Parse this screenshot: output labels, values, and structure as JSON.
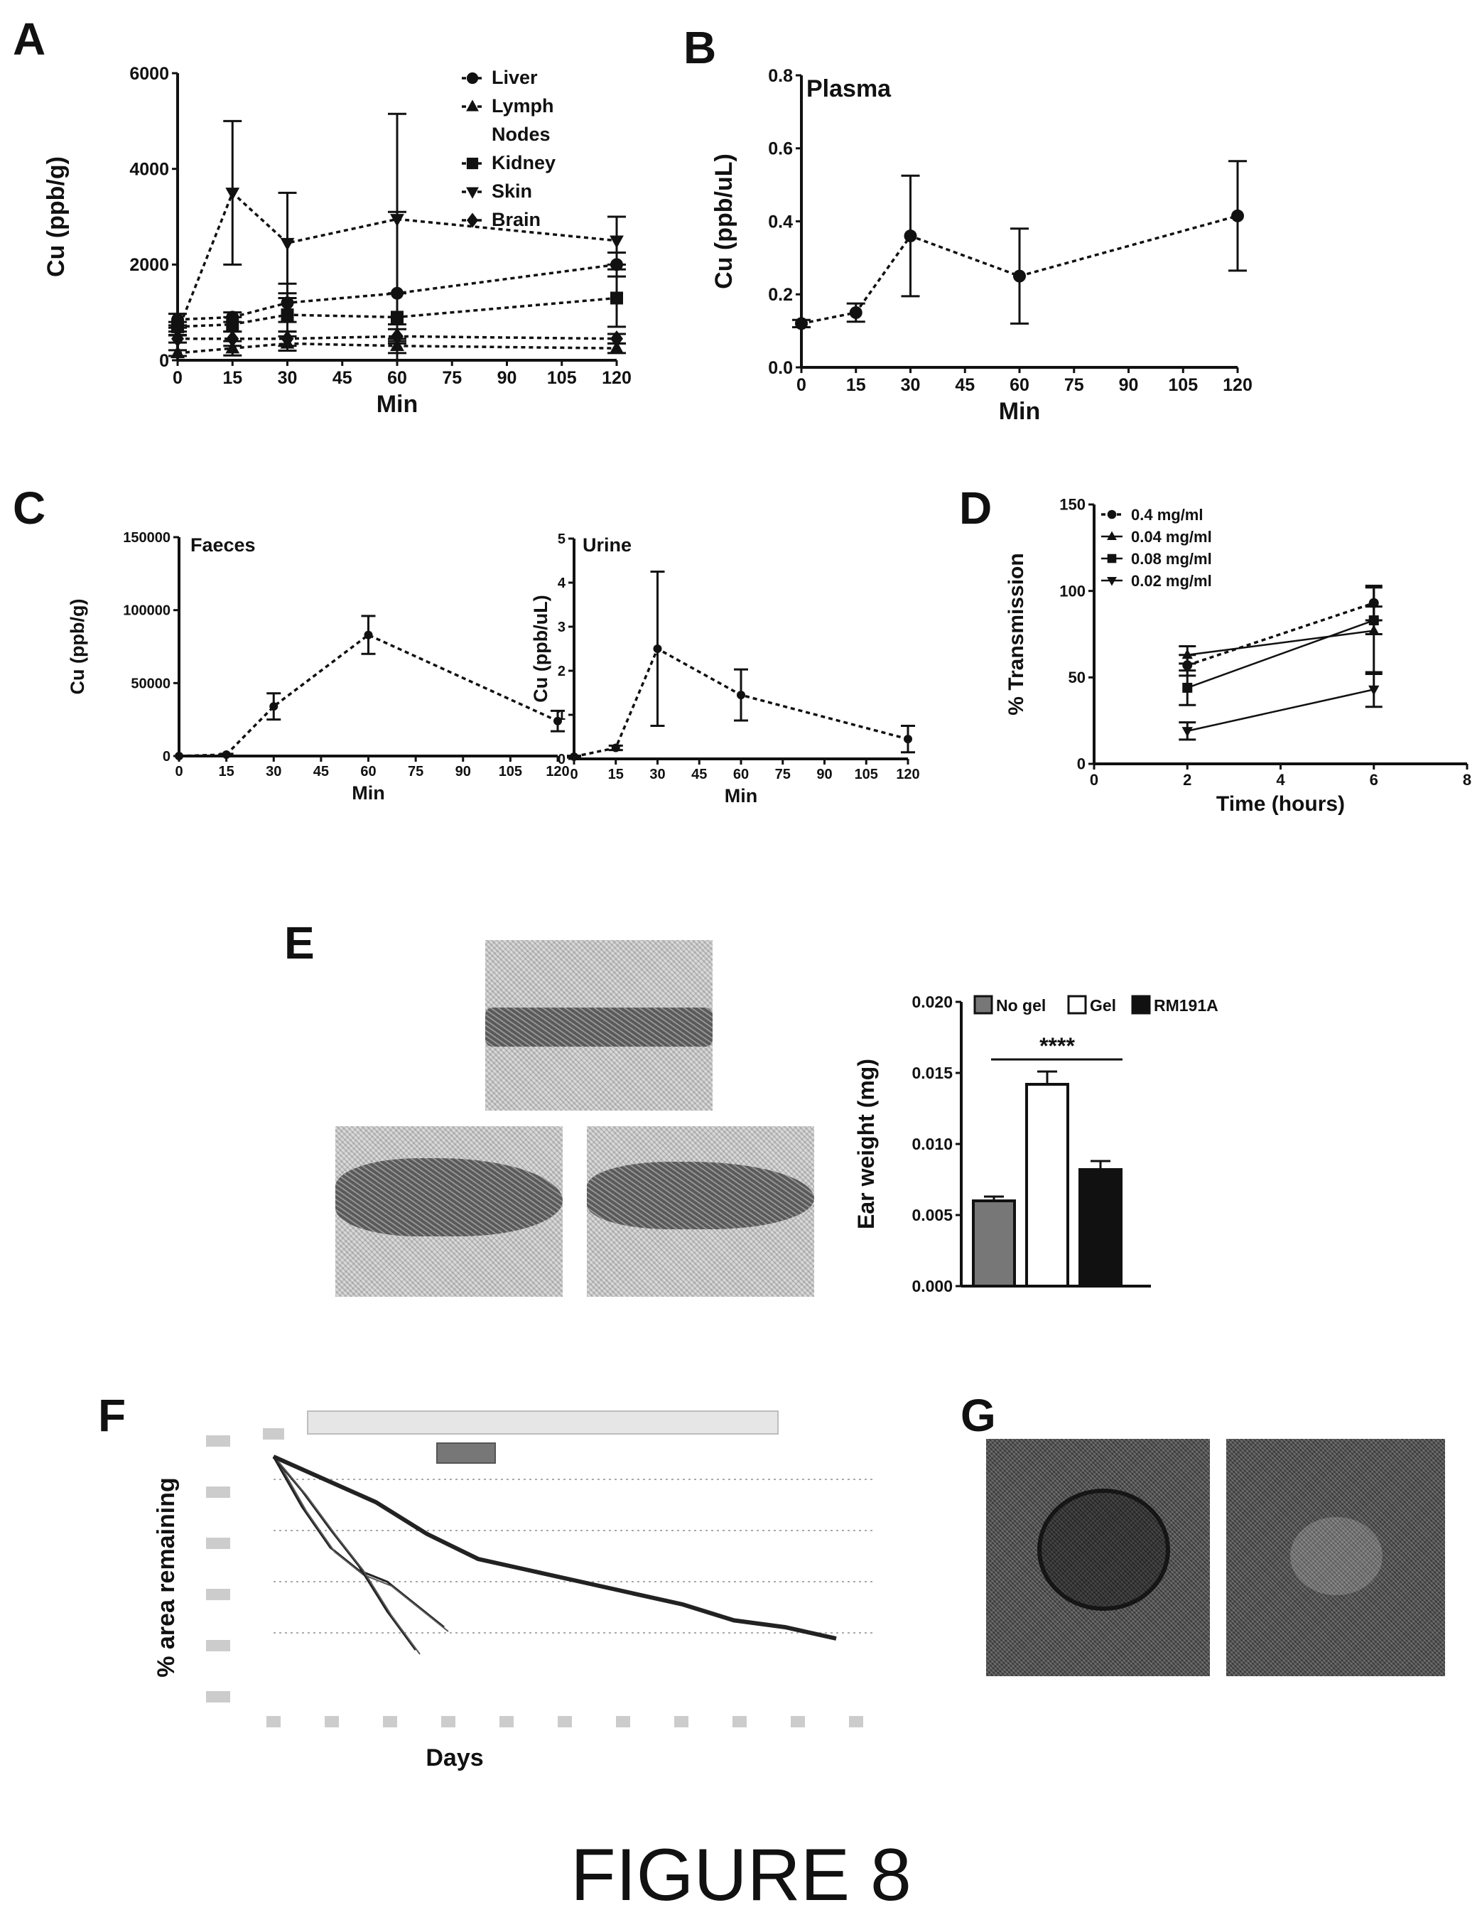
{
  "panels": {
    "A": "A",
    "B": "B",
    "C": "C",
    "D": "D",
    "E": "E",
    "F": "F",
    "G": "G"
  },
  "figure_caption": "FIGURE 8",
  "chart_data": [
    {
      "id": "A",
      "type": "line",
      "xlabel": "Min",
      "ylabel": "Cu (ppb/g)",
      "xlim": [
        0,
        120
      ],
      "ylim": [
        0,
        6000
      ],
      "xticks": [
        0,
        15,
        30,
        45,
        60,
        75,
        90,
        105,
        120
      ],
      "yticks": [
        0,
        2000,
        4000,
        6000
      ],
      "x": [
        0,
        15,
        30,
        60,
        120
      ],
      "legend_position": "top-right",
      "series": [
        {
          "name": "Liver",
          "marker": "circle",
          "values": [
            850,
            900,
            1200,
            1400,
            2000
          ],
          "err": [
            120,
            100,
            400,
            1700,
            250
          ]
        },
        {
          "name": "Lymph Nodes",
          "marker": "triangle-up",
          "values": [
            150,
            250,
            350,
            300,
            250
          ],
          "err": [
            60,
            150,
            150,
            150,
            100
          ]
        },
        {
          "name": "Kidney",
          "marker": "square",
          "values": [
            700,
            750,
            950,
            900,
            1300
          ],
          "err": [
            100,
            150,
            350,
            500,
            600
          ]
        },
        {
          "name": "Skin",
          "marker": "triangle-down",
          "values": [
            600,
            3500,
            2450,
            2950,
            2500
          ],
          "err": [
            80,
            1500,
            1050,
            2200,
            500
          ]
        },
        {
          "name": "Brain",
          "marker": "diamond",
          "values": [
            450,
            450,
            450,
            500,
            450
          ],
          "err": [
            80,
            150,
            150,
            150,
            100
          ]
        }
      ]
    },
    {
      "id": "B",
      "type": "line",
      "title": "Plasma",
      "xlabel": "Min",
      "ylabel": "Cu (ppb/uL)",
      "xlim": [
        0,
        120
      ],
      "ylim": [
        0,
        0.8
      ],
      "xticks": [
        0,
        15,
        30,
        45,
        60,
        75,
        90,
        105,
        120
      ],
      "yticks": [
        "0.0",
        "0.2",
        "0.4",
        "0.6",
        "0.8"
      ],
      "series": [
        {
          "x": [
            0,
            15,
            30,
            60,
            120
          ],
          "values": [
            0.12,
            0.15,
            0.36,
            0.25,
            0.415
          ],
          "err": [
            0.01,
            0.025,
            0.165,
            0.13,
            0.15
          ]
        }
      ]
    },
    {
      "id": "C-faeces",
      "type": "line",
      "title": "Faeces",
      "xlabel": "Min",
      "ylabel": "Cu (ppb/g)",
      "xlim": [
        0,
        120
      ],
      "ylim": [
        0,
        150000
      ],
      "xticks": [
        0,
        15,
        30,
        45,
        60,
        75,
        90,
        105,
        120
      ],
      "yticks": [
        0,
        50000,
        100000,
        150000
      ],
      "series": [
        {
          "x": [
            0,
            15,
            30,
            60,
            120
          ],
          "values": [
            0,
            1000,
            34000,
            83000,
            24000
          ],
          "err": [
            0,
            500,
            9000,
            13000,
            7000
          ]
        }
      ]
    },
    {
      "id": "C-urine",
      "type": "line",
      "title": "Urine",
      "xlabel": "Min",
      "ylabel": "Cu (ppb/uL)",
      "xlim": [
        0,
        120
      ],
      "ylim": [
        0,
        5
      ],
      "xticks": [
        0,
        15,
        30,
        45,
        60,
        75,
        90,
        105,
        120
      ],
      "yticks": [
        0,
        1,
        2,
        3,
        4,
        5
      ],
      "series": [
        {
          "x": [
            0,
            15,
            30,
            60,
            120
          ],
          "values": [
            0.05,
            0.25,
            2.5,
            1.45,
            0.45
          ],
          "err": [
            0.02,
            0.05,
            1.75,
            0.58,
            0.3
          ]
        }
      ]
    },
    {
      "id": "D",
      "type": "line",
      "xlabel": "Time (hours)",
      "ylabel": "% Transmission",
      "xlim": [
        0,
        8
      ],
      "ylim": [
        0,
        150
      ],
      "xticks": [
        0,
        2,
        4,
        6,
        8
      ],
      "yticks": [
        0,
        50,
        100,
        150
      ],
      "x": [
        2,
        6
      ],
      "legend_position": "top-left",
      "series": [
        {
          "name": "0.4 mg/ml",
          "marker": "circle",
          "dashed": true,
          "values": [
            57,
            93
          ],
          "err": [
            6,
            10
          ]
        },
        {
          "name": "0.04 mg/ml",
          "marker": "triangle-up",
          "dashed": false,
          "values": [
            63,
            77
          ],
          "err": [
            5,
            25
          ]
        },
        {
          "name": "0.08 mg/ml",
          "marker": "square",
          "dashed": false,
          "values": [
            44,
            83
          ],
          "err": [
            10,
            8
          ]
        },
        {
          "name": "0.02 mg/ml",
          "marker": "triangle-down",
          "dashed": false,
          "values": [
            19,
            43
          ],
          "err": [
            5,
            10
          ]
        }
      ]
    },
    {
      "id": "E-bar",
      "type": "bar",
      "ylabel": "Ear weight (mg)",
      "ylim": [
        0,
        0.02
      ],
      "yticks": [
        "0.000",
        "0.005",
        "0.010",
        "0.015",
        "0.020"
      ],
      "categories": [
        "No gel",
        "Gel",
        "RM191A"
      ],
      "values": [
        0.006,
        0.0142,
        0.0082
      ],
      "err": [
        0.0003,
        0.0009,
        0.0006
      ],
      "significance": "****",
      "legend_position": "top"
    },
    {
      "id": "F",
      "type": "line",
      "xlabel": "Days",
      "ylabel": "% area remaining",
      "series": [
        {
          "values": [
            100,
            90,
            80,
            66,
            55,
            50,
            45,
            40,
            35,
            28,
            25,
            20
          ]
        },
        {
          "values": [
            100,
            78,
            60,
            50,
            45,
            35,
            25
          ]
        },
        {
          "values": [
            100,
            85,
            68,
            52,
            32,
            15
          ]
        }
      ]
    }
  ]
}
